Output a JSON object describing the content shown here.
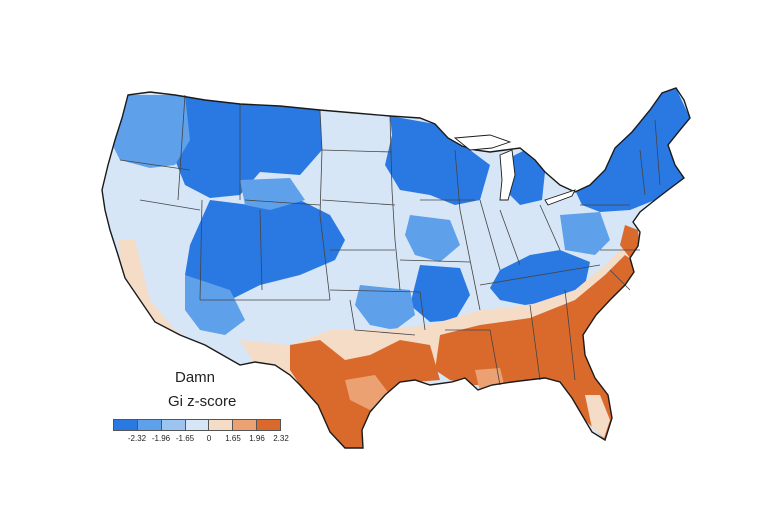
{
  "legend": {
    "word": "Damn",
    "subtitle": "Gi z-score",
    "ticks": [
      "-2.32",
      "-1.96",
      "-1.65",
      "0",
      "1.65",
      "1.96",
      "2.32"
    ],
    "colors": [
      "#2a79e2",
      "#5fa0ea",
      "#9cc4f0",
      "#d6e6f7",
      "#f5dcc7",
      "#eba171",
      "#d96a2c"
    ]
  },
  "palette": {
    "border": "#1a1a1a",
    "state_line": "#444444"
  }
}
